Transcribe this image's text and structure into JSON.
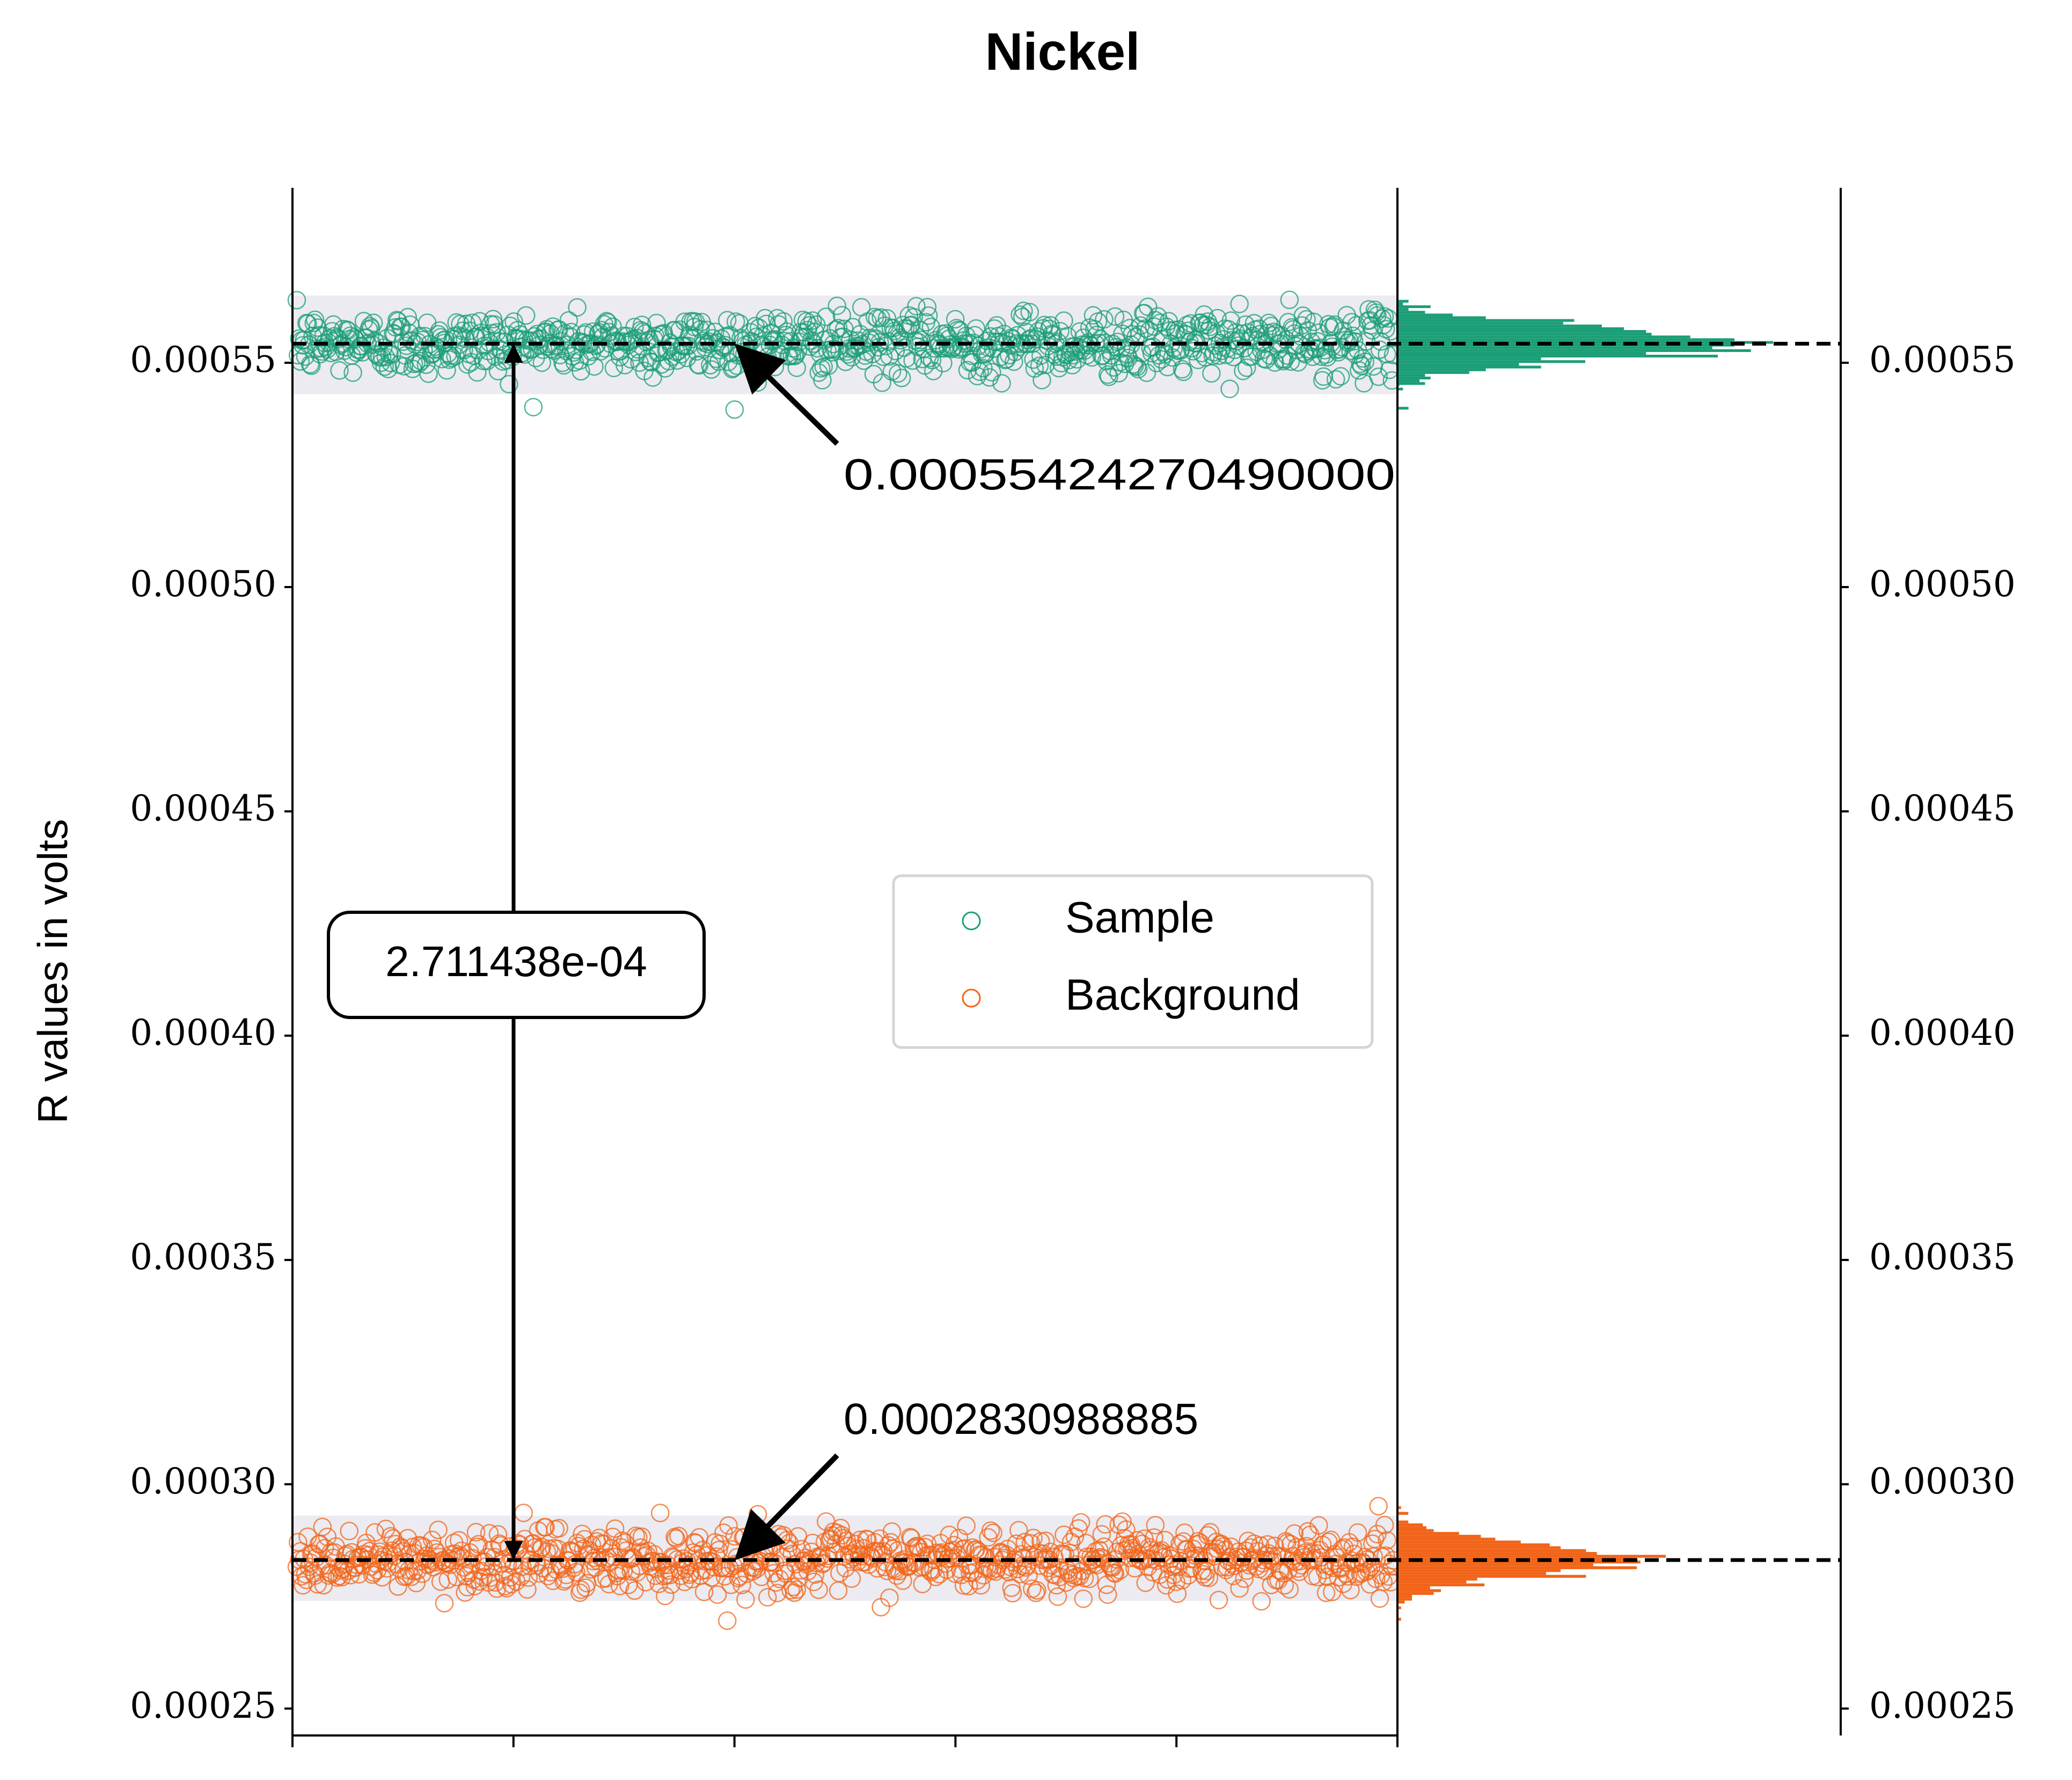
{
  "chart_data": {
    "type": "scatter",
    "title": "Nickel",
    "ylabel": "R values in volts",
    "xlabel": "",
    "ylim": [
      0.000244,
      0.000589
    ],
    "yticks": [
      0.00025,
      0.0003,
      0.00035,
      0.0004,
      0.00045,
      0.0005,
      0.00055
    ],
    "ytick_labels": [
      "0.00025",
      "0.00030",
      "0.00035",
      "0.00040",
      "0.00045",
      "0.00050",
      "0.00055"
    ],
    "x_tick_count": 6,
    "grid": false,
    "legend_position": "center-right",
    "series": [
      {
        "name": "Sample",
        "color": "#1b9e77",
        "mean": 0.0005542427049,
        "spread": 3.5e-06,
        "band": [
          0.000543,
          0.000565
        ],
        "n_points": 900
      },
      {
        "name": "Background",
        "color": "#f26418",
        "mean": 0.0002830988885,
        "spread": 3.5e-06,
        "band": [
          0.000274,
          0.000293
        ],
        "n_points": 900
      }
    ],
    "annotations": {
      "sample_mean_label": "0.00055424270490000",
      "background_mean_label": "0.0002830988885",
      "difference_label": "2.711438e-04"
    }
  }
}
